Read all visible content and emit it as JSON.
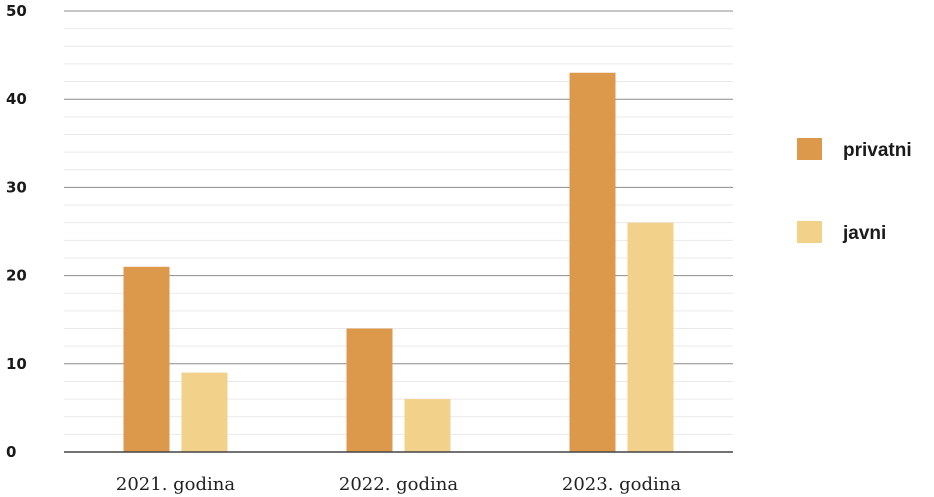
{
  "chart_data": {
    "type": "bar",
    "categories": [
      "2021. godina",
      "2022. godina",
      "2023. godina"
    ],
    "series": [
      {
        "name": "privatni",
        "values": [
          21,
          14,
          43
        ],
        "color": "#dd994b"
      },
      {
        "name": "javni",
        "values": [
          9,
          6,
          26
        ],
        "color": "#f2d18a"
      }
    ],
    "yticks": [
      0,
      10,
      20,
      30,
      40,
      50
    ],
    "ylim": [
      0,
      50
    ],
    "grid": true,
    "legend_position": "right",
    "title": "",
    "xlabel": "",
    "ylabel": ""
  }
}
